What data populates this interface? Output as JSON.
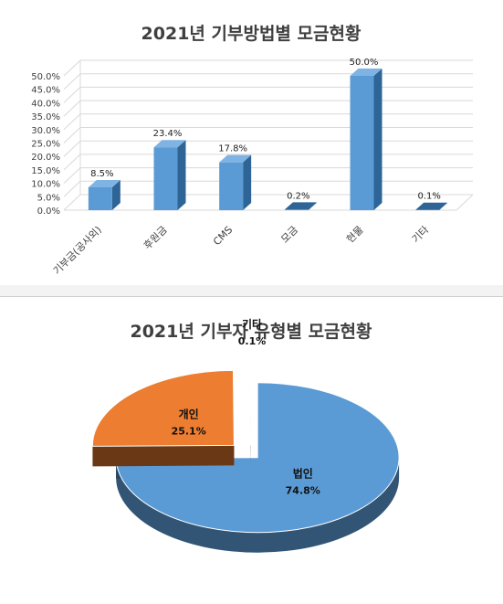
{
  "chart_data": [
    {
      "type": "bar",
      "title": "2021년 기부방법별 모금현황",
      "categories": [
        "기부금(공사외)",
        "후원금",
        "CMS",
        "모금",
        "현물",
        "기타"
      ],
      "values": [
        8.5,
        23.4,
        17.8,
        0.2,
        50.0,
        0.1
      ],
      "data_labels": [
        "8.5%",
        "23.4%",
        "17.8%",
        "0.2%",
        "50.0%",
        "0.1%"
      ],
      "ylim": [
        0,
        50
      ],
      "yticks": [
        "0.0%",
        "5.0%",
        "10.0%",
        "15.0%",
        "20.0%",
        "25.0%",
        "30.0%",
        "35.0%",
        "40.0%",
        "45.0%",
        "50.0%"
      ],
      "grid": true,
      "colors": {
        "bar_front": "#5b9bd5",
        "bar_side": "#2e6496",
        "bar_top": "#7fb3e3"
      }
    },
    {
      "type": "pie",
      "title": "2021년 기부자 유형별 모금현황",
      "slices": [
        {
          "label": "법인",
          "value": 74.8,
          "pct_label": "74.8%",
          "color": "#5b9bd5"
        },
        {
          "label": "개인",
          "value": 25.1,
          "pct_label": "25.1%",
          "color": "#ed7d31"
        },
        {
          "label": "기타",
          "value": 0.1,
          "pct_label": "0.1%",
          "color": "#a5a5a5"
        }
      ],
      "style": "3d-exploded"
    }
  ]
}
